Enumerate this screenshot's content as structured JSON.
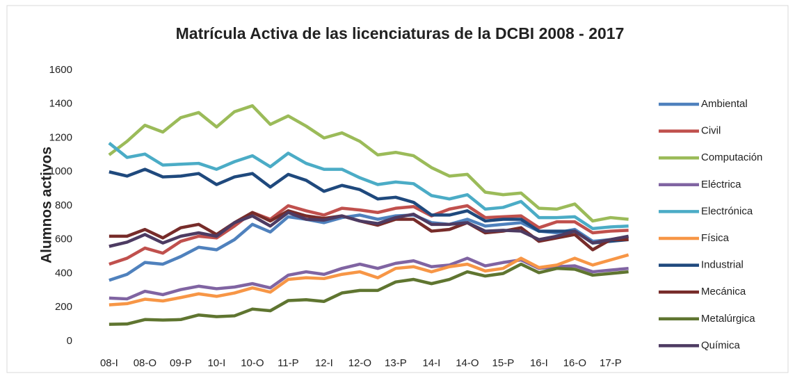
{
  "chart_data": {
    "type": "line",
    "title": "Matrícula Activa de las licenciaturas de la DCBI 2008 - 2017",
    "y_label": "Alumnos activos",
    "categories": [
      "08-I",
      null,
      "08-O",
      null,
      "09-P",
      null,
      "10-I",
      null,
      "10-O",
      null,
      "11-P",
      null,
      "12-I",
      null,
      "12-O",
      null,
      "13-P",
      null,
      "14-I",
      null,
      "14-O",
      null,
      "15-P",
      null,
      "16-I",
      null,
      "16-O",
      null,
      "17-P",
      null
    ],
    "ylim": [
      0,
      1600
    ],
    "yticks": [
      0,
      200,
      400,
      600,
      800,
      1000,
      1200,
      1400,
      1600
    ],
    "grid": false,
    "legend": "right",
    "series": [
      {
        "name": "Ambiental",
        "color": "#4f81bd",
        "values": [
          360,
          395,
          465,
          455,
          500,
          555,
          540,
          600,
          690,
          645,
          735,
          720,
          700,
          730,
          745,
          720,
          740,
          745,
          700,
          690,
          720,
          680,
          690,
          700,
          650,
          640,
          660,
          590,
          600,
          610
        ]
      },
      {
        "name": "Civil",
        "color": "#c0504d",
        "values": [
          455,
          490,
          550,
          520,
          590,
          620,
          610,
          680,
          760,
          720,
          800,
          770,
          745,
          785,
          775,
          760,
          785,
          795,
          740,
          780,
          800,
          730,
          735,
          740,
          670,
          705,
          705,
          640,
          650,
          655
        ]
      },
      {
        "name": "Computación",
        "color": "#9bbb59",
        "values": [
          1100,
          1180,
          1275,
          1235,
          1320,
          1350,
          1265,
          1355,
          1390,
          1280,
          1330,
          1270,
          1200,
          1230,
          1180,
          1100,
          1115,
          1095,
          1025,
          975,
          985,
          880,
          865,
          875,
          785,
          780,
          810,
          710,
          730,
          720
        ]
      },
      {
        "name": "Eléctrica",
        "color": "#8064a2",
        "values": [
          255,
          250,
          295,
          275,
          305,
          325,
          310,
          320,
          340,
          315,
          390,
          410,
          395,
          430,
          455,
          430,
          460,
          475,
          440,
          450,
          490,
          445,
          465,
          480,
          430,
          440,
          445,
          410,
          420,
          430
        ]
      },
      {
        "name": "Electrónica",
        "color": "#4bacc6",
        "values": [
          1170,
          1085,
          1105,
          1040,
          1045,
          1050,
          1015,
          1060,
          1095,
          1030,
          1110,
          1050,
          1015,
          1015,
          965,
          925,
          940,
          930,
          860,
          840,
          865,
          780,
          790,
          825,
          730,
          730,
          735,
          665,
          675,
          680
        ]
      },
      {
        "name": "Física",
        "color": "#f79646",
        "values": [
          215,
          222,
          248,
          238,
          258,
          280,
          265,
          285,
          315,
          290,
          365,
          375,
          370,
          395,
          410,
          375,
          430,
          440,
          410,
          440,
          455,
          415,
          430,
          490,
          435,
          450,
          490,
          450,
          480,
          510
        ]
      },
      {
        "name": "Industrial",
        "color": "#1f497d",
        "values": [
          1000,
          975,
          1015,
          970,
          975,
          990,
          925,
          970,
          990,
          910,
          985,
          950,
          885,
          920,
          895,
          840,
          850,
          820,
          745,
          745,
          770,
          710,
          720,
          720,
          650,
          650,
          650,
          580,
          590,
          600
        ]
      },
      {
        "name": "Mecánica",
        "color": "#772c2a",
        "values": [
          620,
          620,
          660,
          610,
          670,
          690,
          630,
          700,
          760,
          710,
          770,
          740,
          725,
          740,
          710,
          685,
          720,
          720,
          650,
          660,
          700,
          640,
          650,
          670,
          590,
          610,
          630,
          540,
          600,
          600
        ]
      },
      {
        "name": "Metalúrgica",
        "color": "#5f7530",
        "values": [
          100,
          102,
          128,
          125,
          128,
          155,
          145,
          150,
          190,
          180,
          240,
          245,
          235,
          285,
          300,
          300,
          350,
          365,
          340,
          365,
          410,
          385,
          400,
          455,
          405,
          430,
          425,
          390,
          400,
          410
        ]
      },
      {
        "name": "Química",
        "color": "#4d3b62",
        "values": [
          560,
          585,
          630,
          580,
          620,
          640,
          620,
          700,
          740,
          680,
          760,
          720,
          715,
          740,
          710,
          695,
          730,
          750,
          690,
          690,
          700,
          650,
          655,
          650,
          600,
          620,
          650,
          580,
          600,
          620
        ]
      }
    ]
  }
}
